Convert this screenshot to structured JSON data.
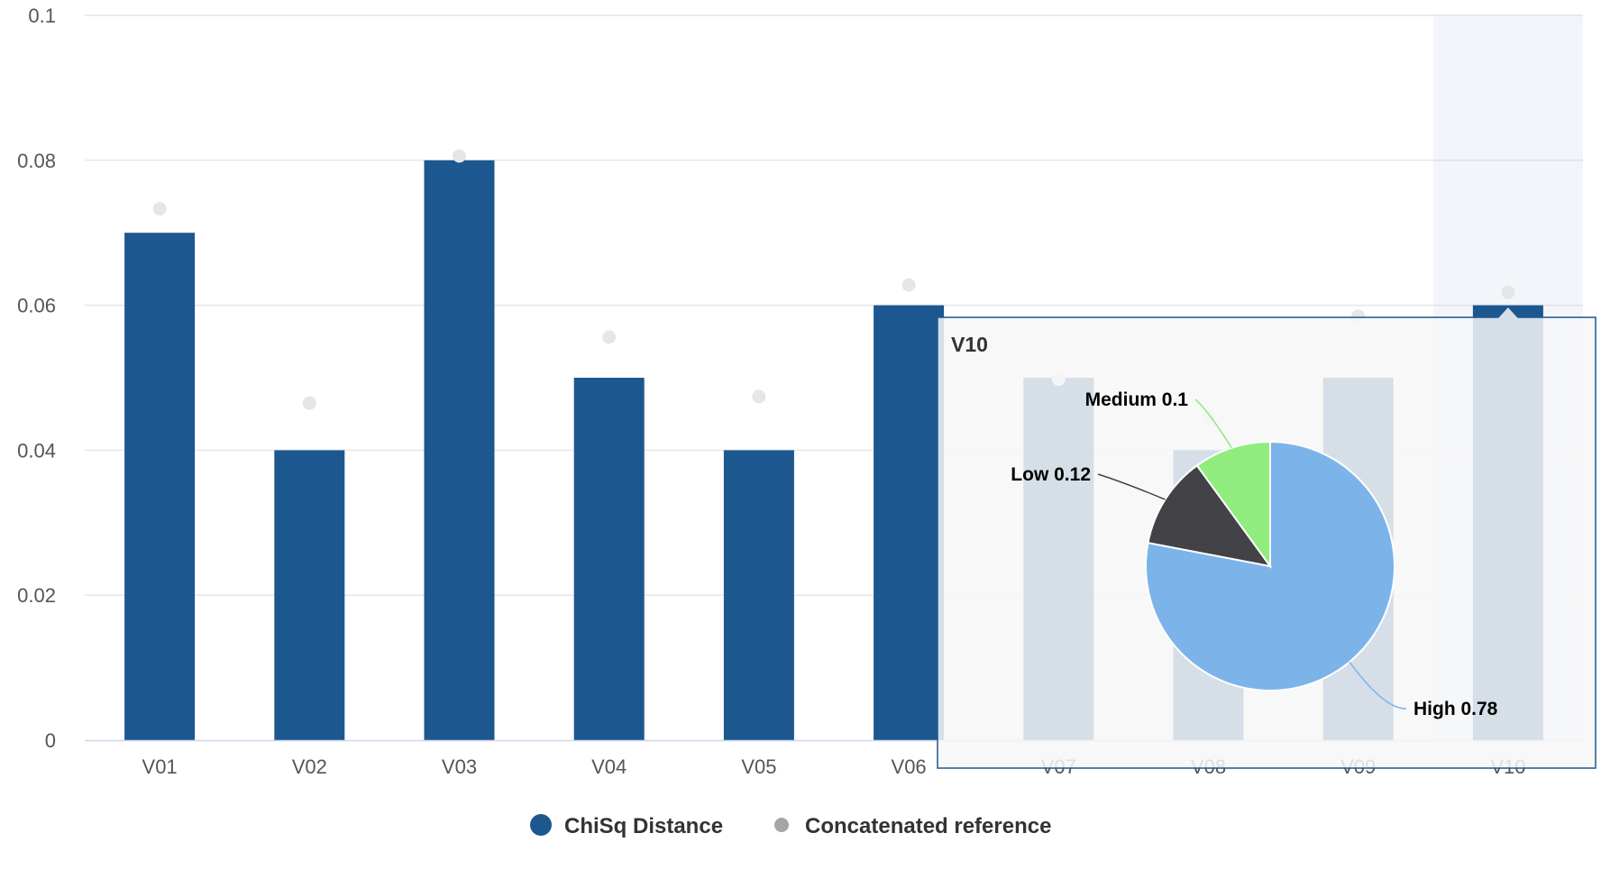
{
  "chart_data": {
    "type": "bar",
    "categories": [
      "V01",
      "V02",
      "V03",
      "V04",
      "V05",
      "V06",
      "V07",
      "V08",
      "V09",
      "V10"
    ],
    "ylim": [
      0,
      0.1
    ],
    "yticks": [
      0,
      0.02,
      0.04,
      0.06,
      0.08,
      0.1
    ],
    "ytick_labels": [
      "0",
      "0.02",
      "0.04",
      "0.06",
      "0.08",
      "0.1"
    ],
    "grid": true,
    "legend_position": "bottom-center",
    "series": [
      {
        "name": "ChiSq Distance",
        "type": "bar",
        "color": "#1c578f",
        "values": [
          0.07,
          0.04,
          0.08,
          0.05,
          0.04,
          0.06,
          0.05,
          0.04,
          0.05,
          0.06
        ]
      },
      {
        "name": "Concatenated reference",
        "type": "scatter",
        "color": "#e6e6e6",
        "legend_color": "#a6a6a6",
        "values": [
          0.0733,
          0.0465,
          0.0806,
          0.0556,
          0.0474,
          0.0628,
          0.0498,
          0.0445,
          0.0585,
          0.0618
        ]
      }
    ],
    "tooltip": {
      "category": "V10",
      "title": "V10",
      "pie": {
        "type": "pie",
        "slices": [
          {
            "label": "High",
            "value": 0.78,
            "color": "#7cb4ea",
            "text": "High 0.78"
          },
          {
            "label": "Low",
            "value": 0.12,
            "color": "#424247",
            "text": "Low 0.12"
          },
          {
            "label": "Medium",
            "value": 0.1,
            "color": "#90ec7d",
            "text": "Medium 0.1"
          }
        ]
      }
    }
  }
}
